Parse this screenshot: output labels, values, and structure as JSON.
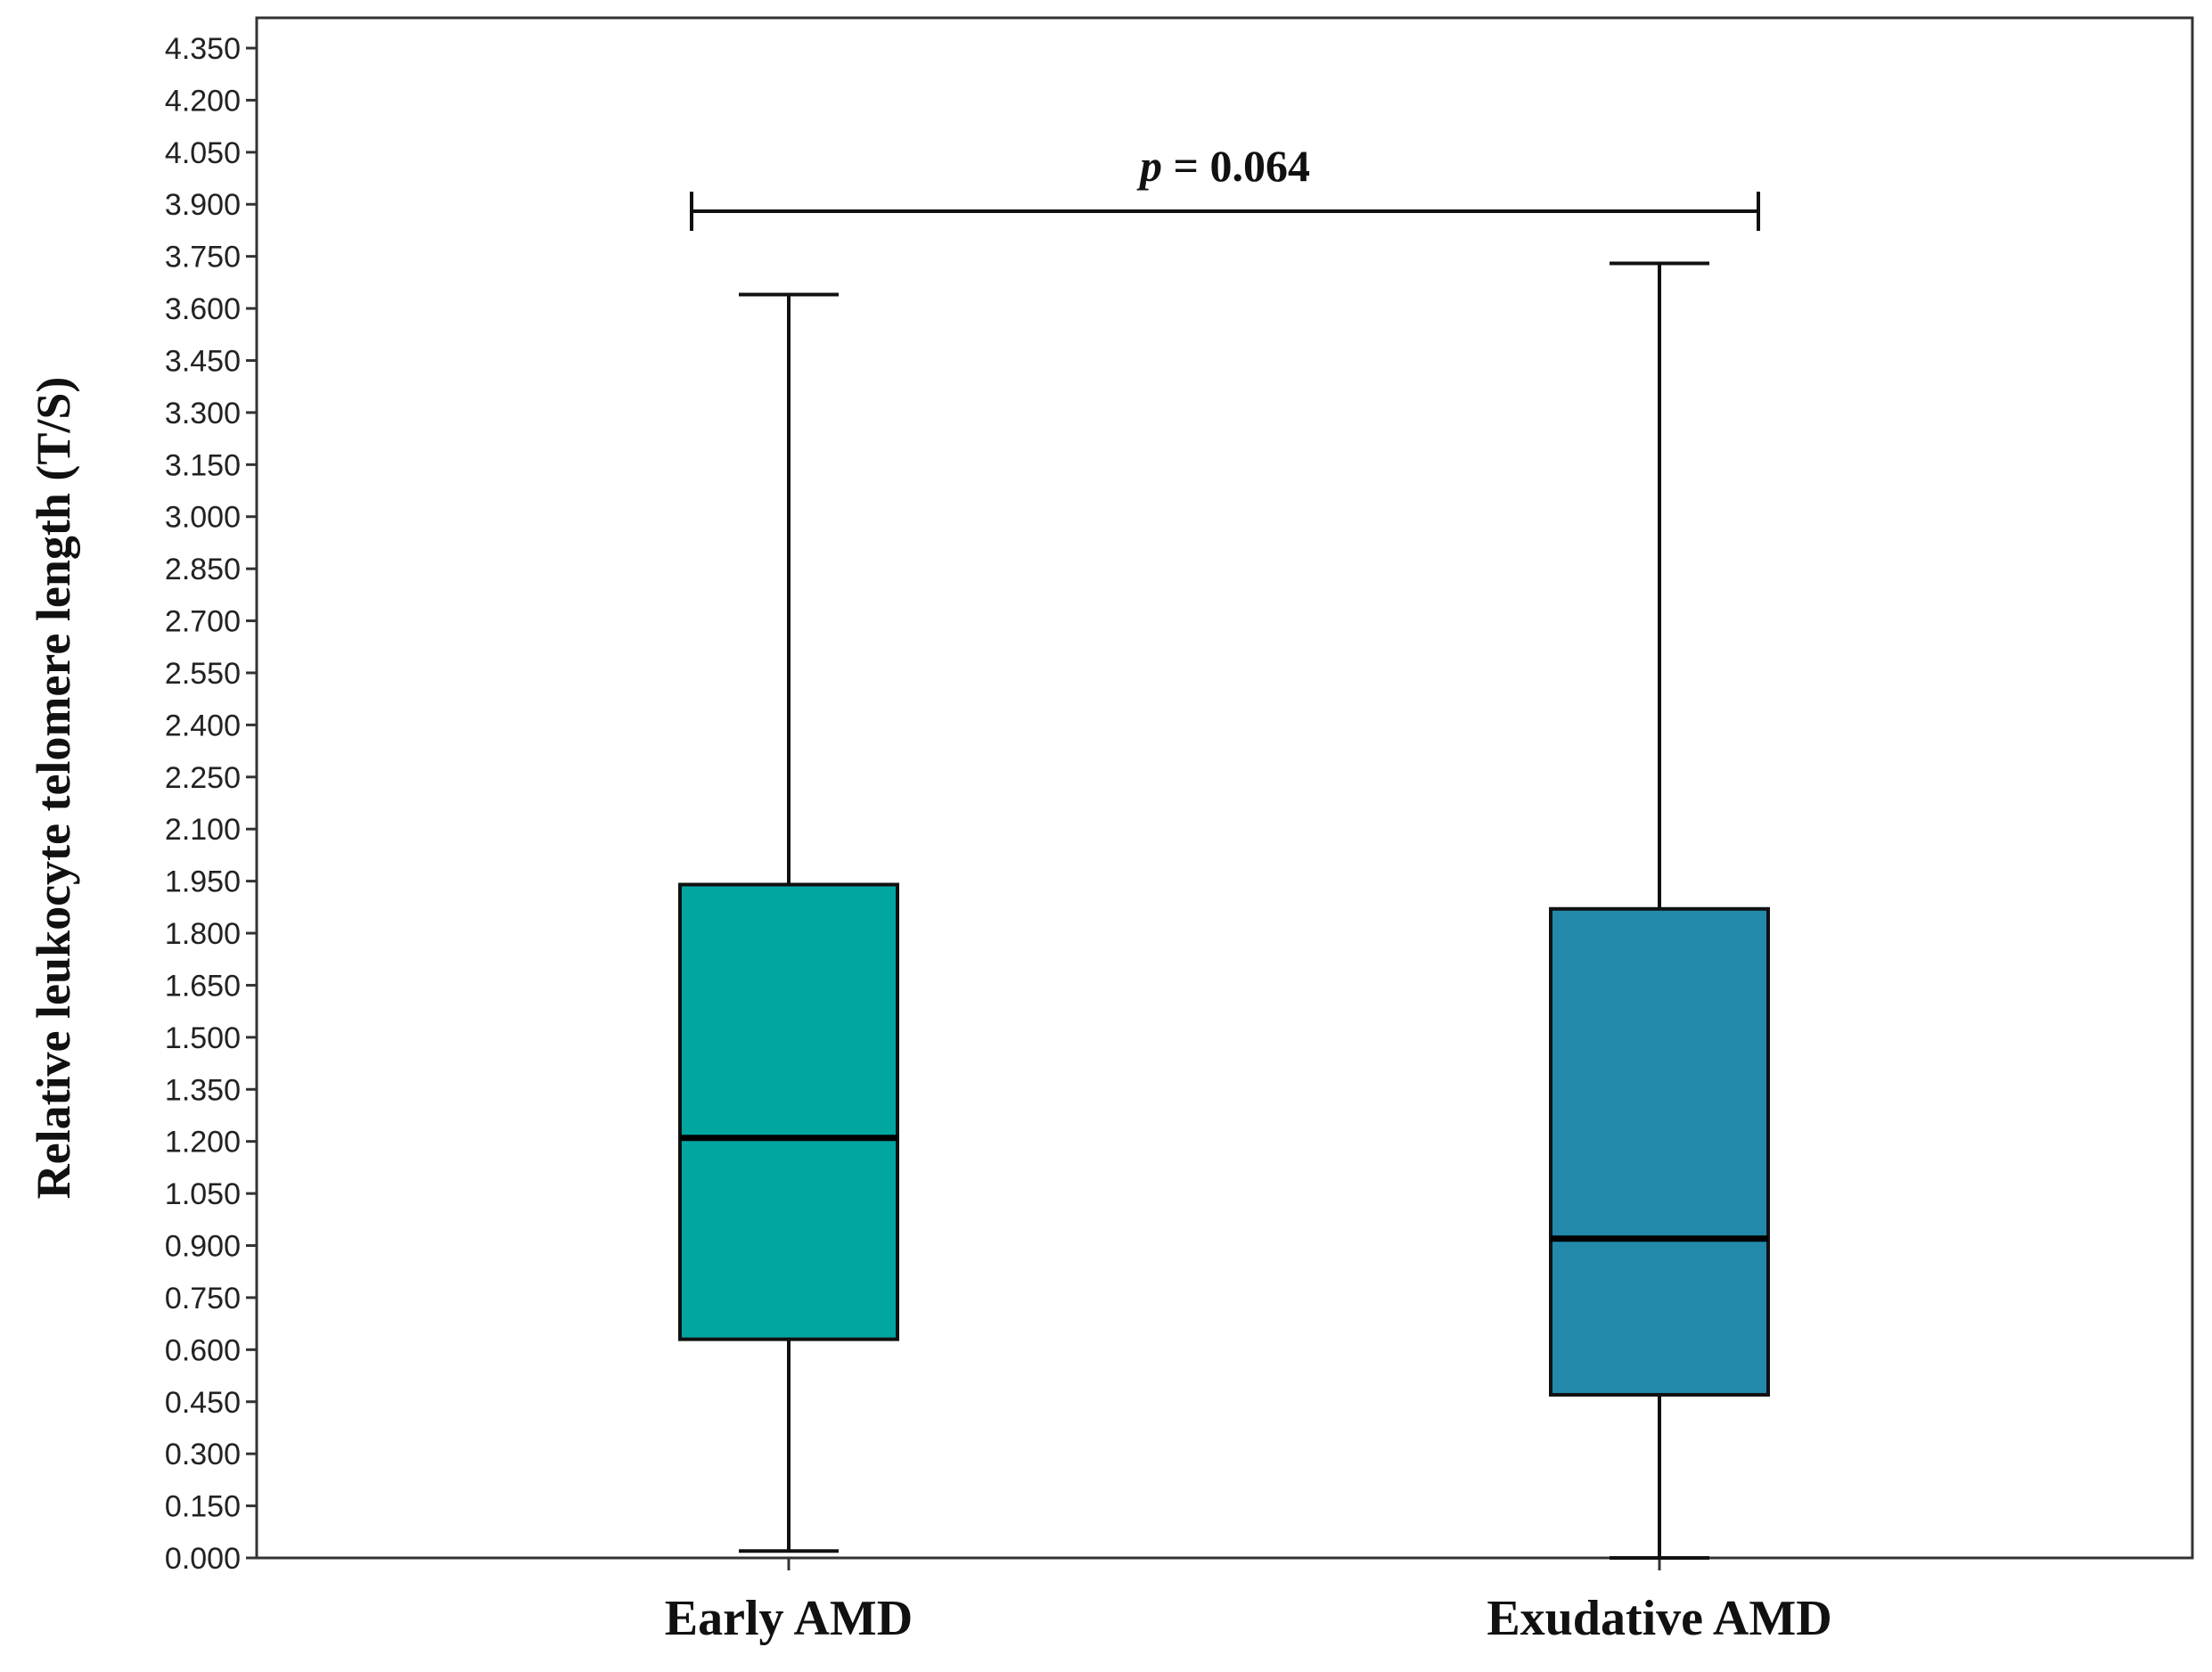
{
  "chart_data": {
    "type": "box",
    "ylabel": "Relative leukocyte telomere length (T/S)",
    "ylim": [
      0,
      4.35
    ],
    "y_ticks": [
      "0.000",
      "0.150",
      "0.300",
      "0.450",
      "0.600",
      "0.750",
      "0.900",
      "1.050",
      "1.200",
      "1.350",
      "1.500",
      "1.650",
      "1.800",
      "1.950",
      "2.100",
      "2.250",
      "2.400",
      "2.550",
      "2.700",
      "2.850",
      "3.000",
      "3.150",
      "3.300",
      "3.450",
      "3.600",
      "3.750",
      "3.900",
      "4.050",
      "4.200",
      "4.350"
    ],
    "categories": [
      "Early AMD",
      "Exudative AMD"
    ],
    "boxes": [
      {
        "category": "Early AMD",
        "min": 0.02,
        "q1": 0.63,
        "median": 1.21,
        "q3": 1.94,
        "max": 3.64,
        "color": "#02A6A1"
      },
      {
        "category": "Exudative AMD",
        "min": 0.0,
        "q1": 0.47,
        "median": 0.92,
        "q3": 1.87,
        "max": 3.73,
        "color": "#2389AA"
      }
    ],
    "annotation": {
      "p_label": "p",
      "p_value": "= 0.064",
      "bracket_y": 3.88
    }
  }
}
